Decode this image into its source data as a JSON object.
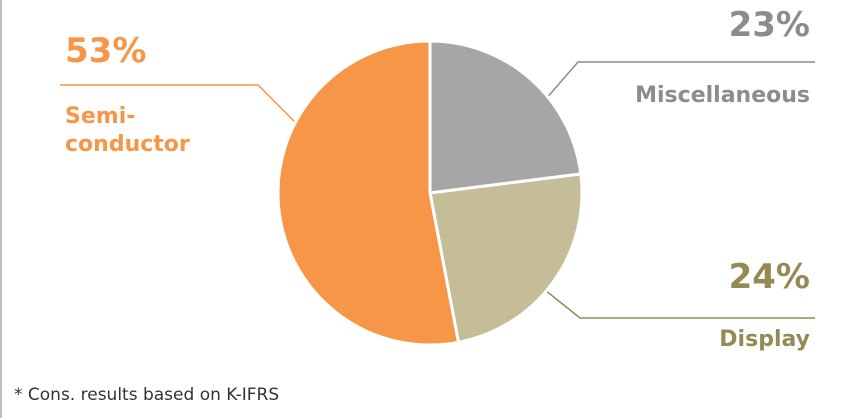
{
  "chart_data": {
    "type": "pie",
    "categories": [
      "Miscellaneous",
      "Display",
      "Semi-conductor"
    ],
    "values": [
      23,
      24,
      53
    ],
    "value_labels": [
      "23%",
      "24%",
      "53%"
    ],
    "colors": [
      "#a6a6a6",
      "#c4bd97",
      "#f79646"
    ],
    "note": "* Cons. results based on K-IFRS"
  }
}
